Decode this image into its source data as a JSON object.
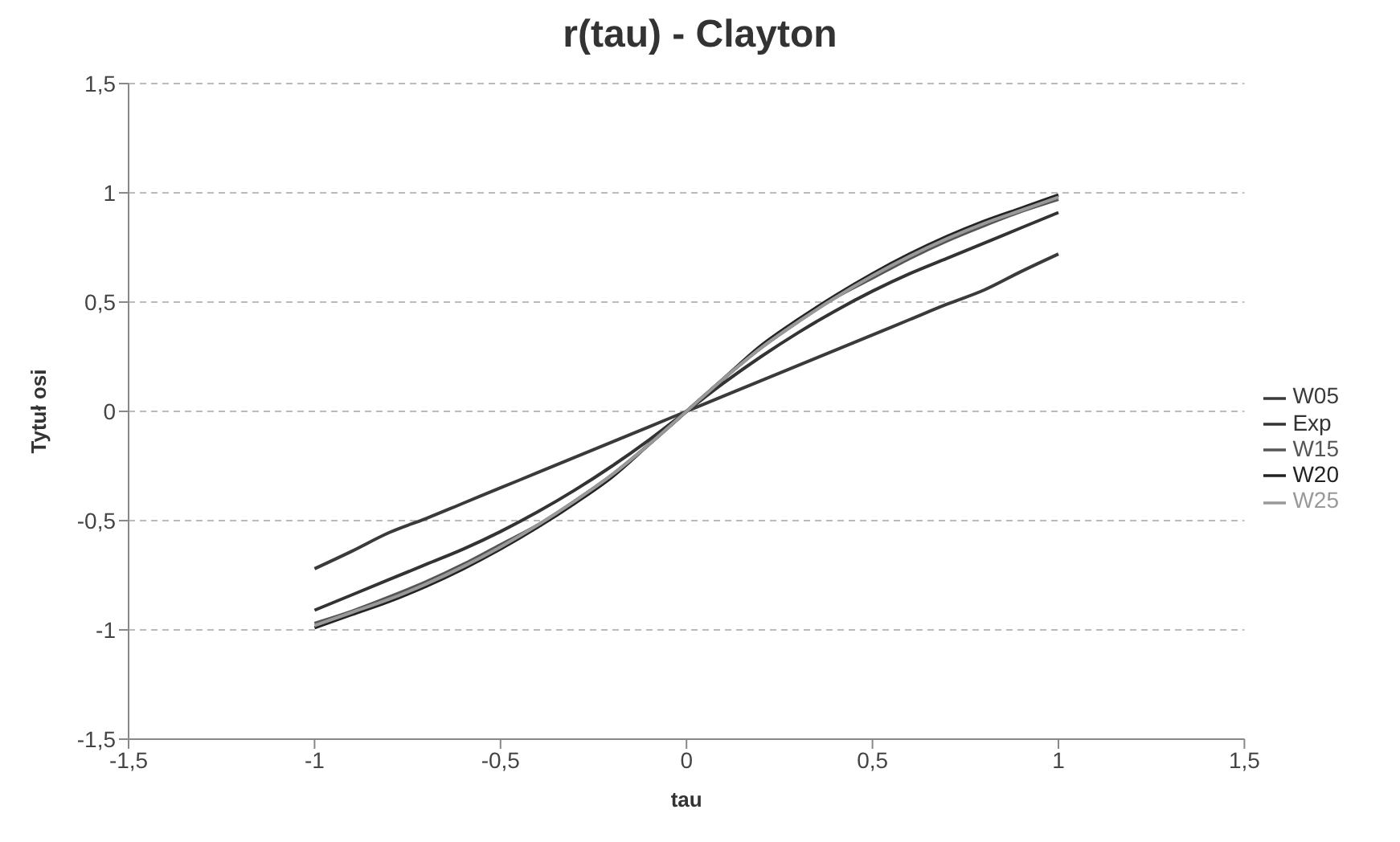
{
  "chart_data": {
    "type": "line",
    "title": "r(tau) - Clayton",
    "xlabel": "tau",
    "ylabel": "Tytuł osi",
    "x": [
      -1,
      -0.9,
      -0.8,
      -0.7,
      -0.6,
      -0.5,
      -0.4,
      -0.3,
      -0.2,
      -0.1,
      0,
      0.1,
      0.2,
      0.3,
      0.4,
      0.5,
      0.6,
      0.7,
      0.8,
      0.9,
      1
    ],
    "series": [
      {
        "name": "W05",
        "color": "#3a3a3a",
        "values": [
          -0.72,
          -0.64,
          -0.555,
          -0.49,
          -0.42,
          -0.35,
          -0.28,
          -0.21,
          -0.14,
          -0.07,
          0,
          0.07,
          0.14,
          0.21,
          0.28,
          0.35,
          0.42,
          0.49,
          0.555,
          0.64,
          0.72
        ]
      },
      {
        "name": "Exp",
        "color": "#333333",
        "values": [
          -0.91,
          -0.84,
          -0.77,
          -0.7,
          -0.63,
          -0.55,
          -0.46,
          -0.36,
          -0.25,
          -0.13,
          0,
          0.13,
          0.25,
          0.36,
          0.46,
          0.55,
          0.63,
          0.7,
          0.77,
          0.84,
          0.91
        ]
      },
      {
        "name": "W15",
        "color": "#555555",
        "values": [
          -0.97,
          -0.915,
          -0.85,
          -0.78,
          -0.7,
          -0.61,
          -0.52,
          -0.41,
          -0.29,
          -0.15,
          0,
          0.15,
          0.29,
          0.41,
          0.52,
          0.61,
          0.7,
          0.78,
          0.85,
          0.915,
          0.97
        ]
      },
      {
        "name": "W20",
        "color": "#222222",
        "values": [
          -0.99,
          -0.93,
          -0.87,
          -0.8,
          -0.72,
          -0.63,
          -0.53,
          -0.42,
          -0.3,
          -0.15,
          0,
          0.15,
          0.3,
          0.42,
          0.53,
          0.63,
          0.72,
          0.8,
          0.87,
          0.93,
          0.99
        ]
      },
      {
        "name": "W25",
        "color": "#999999",
        "values": [
          -0.98,
          -0.92,
          -0.86,
          -0.79,
          -0.71,
          -0.62,
          -0.52,
          -0.41,
          -0.29,
          -0.15,
          0,
          0.15,
          0.29,
          0.41,
          0.52,
          0.62,
          0.71,
          0.79,
          0.86,
          0.92,
          0.98
        ]
      }
    ],
    "xlim": [
      -1.5,
      1.5
    ],
    "xticks": [
      {
        "value": -1.5,
        "label": "-1,5"
      },
      -1,
      {
        "value": -0.5,
        "label": "-0,5"
      },
      0,
      {
        "value": 0.5,
        "label": "0,5"
      },
      1,
      {
        "value": 1.5,
        "label": "1,5"
      }
    ],
    "ylim": [
      -1.5,
      1.5
    ],
    "yticks": [
      {
        "value": -1.5,
        "label": "-1,5"
      },
      -1,
      {
        "value": -0.5,
        "label": "-0,5"
      },
      0,
      {
        "value": 0.5,
        "label": "0,5"
      },
      1,
      {
        "value": 1.5,
        "label": "1,5"
      }
    ],
    "grid": "y",
    "legend": "right",
    "marker": "none",
    "line_style": "solid"
  }
}
